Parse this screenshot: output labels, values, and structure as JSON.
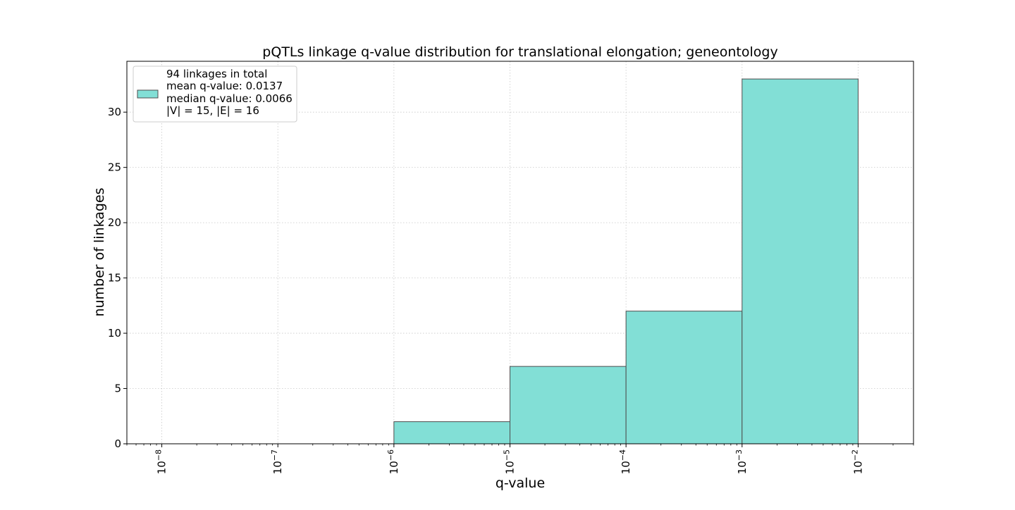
{
  "chart_data": {
    "type": "bar",
    "title": "pQTLs linkage q-value distribution for translational elongation; geneontology",
    "xlabel": "q-value",
    "ylabel": "number of linkages",
    "xscale": "log",
    "xlim": [
      5e-09,
      0.03
    ],
    "ylim": [
      0,
      34.6
    ],
    "grid": true,
    "legend_position": "top-left",
    "bar_color": "#82dfd6",
    "edge_color": "#4d4d4d",
    "bins": [
      {
        "from": 1e-08,
        "to": 1e-07,
        "value": 0
      },
      {
        "from": 1e-07,
        "to": 1e-06,
        "value": 0
      },
      {
        "from": 1e-06,
        "to": 1e-05,
        "value": 2
      },
      {
        "from": 1e-05,
        "to": 0.0001,
        "value": 7
      },
      {
        "from": 0.0001,
        "to": 0.001,
        "value": 12
      },
      {
        "from": 0.001,
        "to": 0.01,
        "value": 33
      }
    ],
    "x_ticks": [
      {
        "value": 1e-08,
        "base": "10",
        "exp": "−8"
      },
      {
        "value": 1e-07,
        "base": "10",
        "exp": "−7"
      },
      {
        "value": 1e-06,
        "base": "10",
        "exp": "−6"
      },
      {
        "value": 1e-05,
        "base": "10",
        "exp": "−5"
      },
      {
        "value": 0.0001,
        "base": "10",
        "exp": "−4"
      },
      {
        "value": 0.001,
        "base": "10",
        "exp": "−3"
      },
      {
        "value": 0.01,
        "base": "10",
        "exp": "−2"
      }
    ],
    "y_ticks": [
      {
        "value": 0,
        "label": "0"
      },
      {
        "value": 5,
        "label": "5"
      },
      {
        "value": 10,
        "label": "10"
      },
      {
        "value": 15,
        "label": "15"
      },
      {
        "value": 20,
        "label": "20"
      },
      {
        "value": 25,
        "label": "25"
      },
      {
        "value": 30,
        "label": "30"
      }
    ],
    "legend": {
      "lines": [
        "94 linkages in total",
        "mean q-value: 0.0137",
        "median q-value: 0.0066",
        "|V| = 15, |E| = 16"
      ]
    }
  }
}
